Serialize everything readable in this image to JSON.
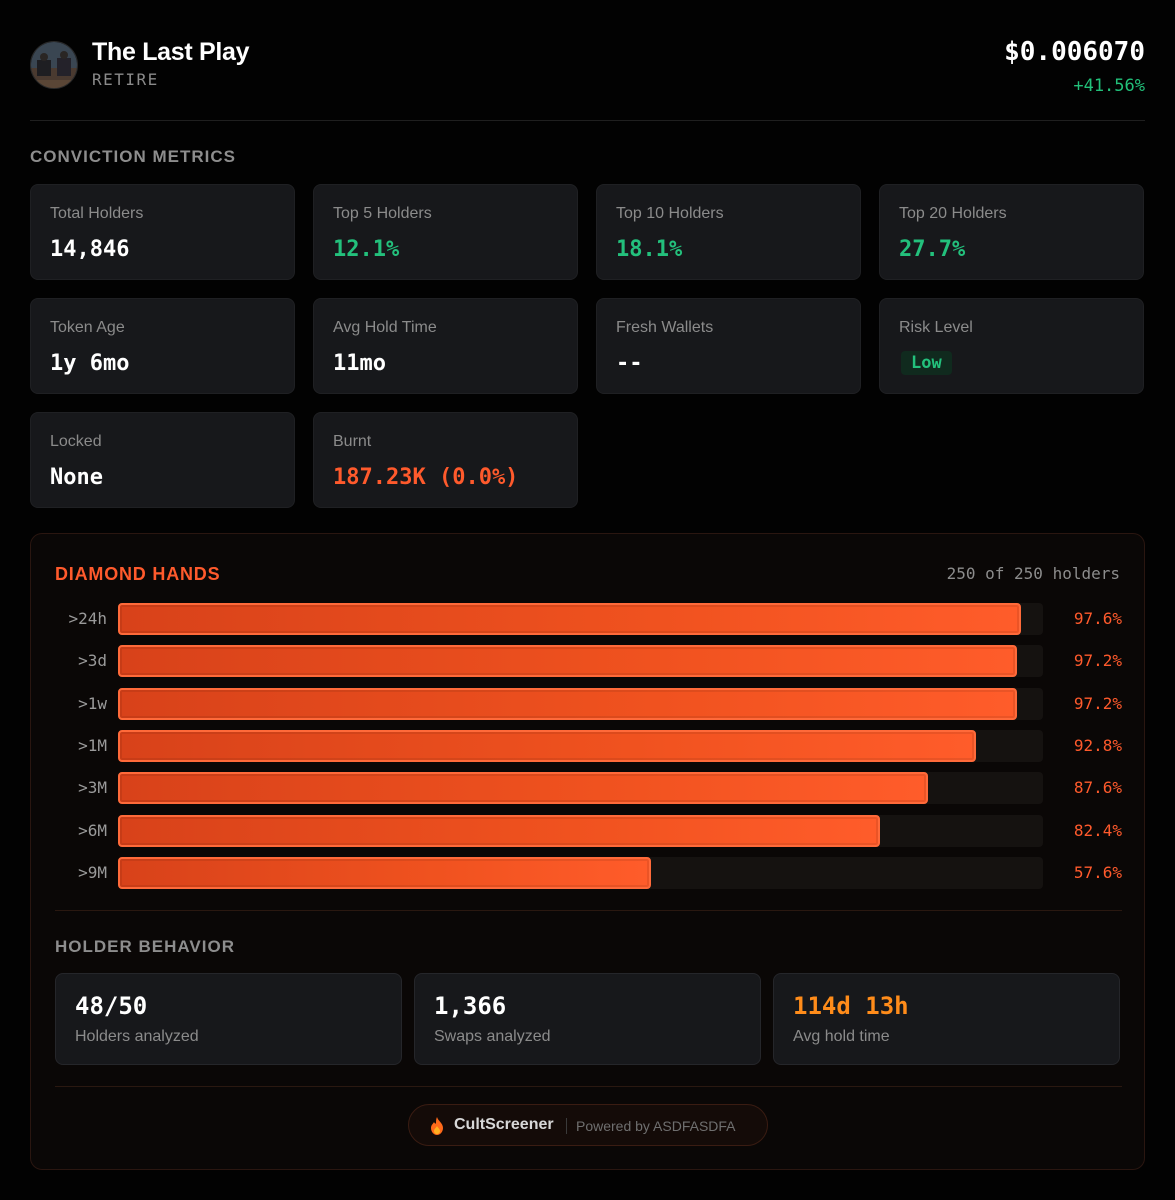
{
  "token": {
    "name": "The Last Play",
    "ticker": "RETIRE",
    "price": "$0.006070",
    "change": "+41.56%"
  },
  "conviction": {
    "title": "CONVICTION METRICS",
    "metrics": [
      {
        "label": "Total Holders",
        "value": "14,846"
      },
      {
        "label": "Top 5 Holders",
        "value": "12.1%"
      },
      {
        "label": "Top 10 Holders",
        "value": "18.1%"
      },
      {
        "label": "Top 20 Holders",
        "value": "27.7%"
      },
      {
        "label": "Token Age",
        "value": "1y 6mo"
      },
      {
        "label": "Avg Hold Time",
        "value": "11mo"
      },
      {
        "label": "Fresh Wallets",
        "value": "--"
      },
      {
        "label": "Risk Level",
        "value": "Low"
      },
      {
        "label": "Locked",
        "value": "None"
      },
      {
        "label": "Burnt",
        "value": "187.23K (0.0%)"
      }
    ]
  },
  "diamond_hands": {
    "title": "DIAMOND HANDS",
    "count": "250 of 250 holders",
    "rows": [
      {
        "label": ">24h",
        "pct": 97.6,
        "pct_label": "97.6%"
      },
      {
        "label": ">3d",
        "pct": 97.2,
        "pct_label": "97.2%"
      },
      {
        "label": ">1w",
        "pct": 97.2,
        "pct_label": "97.2%"
      },
      {
        "label": ">1M",
        "pct": 92.8,
        "pct_label": "92.8%"
      },
      {
        "label": ">3M",
        "pct": 87.6,
        "pct_label": "87.6%"
      },
      {
        "label": ">6M",
        "pct": 82.4,
        "pct_label": "82.4%"
      },
      {
        "label": ">9M",
        "pct": 57.6,
        "pct_label": "57.6%"
      }
    ]
  },
  "holder_behavior": {
    "title": "HOLDER BEHAVIOR",
    "stats": [
      {
        "value": "48/50",
        "label": "Holders analyzed"
      },
      {
        "value": "1,366",
        "label": "Swaps analyzed"
      },
      {
        "value": "114d 13h",
        "label": "Avg hold time"
      }
    ]
  },
  "footer": {
    "brand": "CultScreener",
    "powered": "Powered by ASDFASDFA"
  },
  "colors": {
    "accent": "#ff5a2c",
    "positive": "#23c07c",
    "warm": "#ff8c1a"
  }
}
